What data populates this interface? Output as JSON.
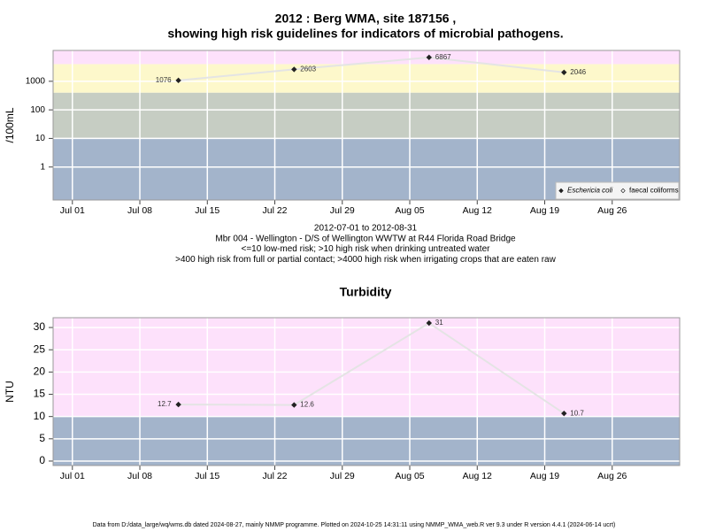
{
  "chart_data": [
    {
      "type": "line",
      "title": [
        "2012 : Berg WMA, site 187156 ,",
        "showing high risk guidelines for indicators of microbial pathogens."
      ],
      "ylabel": "/100mL",
      "log_y": true,
      "x": [
        "2012-07-12",
        "2012-07-24",
        "2012-08-07",
        "2012-08-21"
      ],
      "series": [
        {
          "name": "Eschericia coli",
          "color": "#222222",
          "values": [
            1076,
            2603,
            6867,
            2046
          ]
        },
        {
          "name": "faecal coliforms",
          "color": "#222222",
          "values": [
            null,
            null,
            null,
            null
          ]
        }
      ],
      "line_color": "#e4e4e4",
      "xlim": [
        "2012-06-29",
        "2012-09-02"
      ],
      "xticks": [
        {
          "value": "2012-07-01",
          "label": "Jul 01"
        },
        {
          "value": "2012-07-08",
          "label": "Jul 08"
        },
        {
          "value": "2012-07-15",
          "label": "Jul 15"
        },
        {
          "value": "2012-07-22",
          "label": "Jul 22"
        },
        {
          "value": "2012-07-29",
          "label": "Jul 29"
        },
        {
          "value": "2012-08-05",
          "label": "Aug 05"
        },
        {
          "value": "2012-08-12",
          "label": "Aug 12"
        },
        {
          "value": "2012-08-19",
          "label": "Aug 19"
        },
        {
          "value": "2012-08-26",
          "label": "Aug 26"
        }
      ],
      "ylim": [
        0.07,
        12000
      ],
      "yticks": [
        1,
        10,
        100,
        1000
      ],
      "band_limits": [
        10,
        400,
        4000
      ],
      "band_colors": [
        "#a3b4cb",
        "#c6cdc3",
        "#fdf8cb",
        "#fde1fb"
      ],
      "grid": true,
      "legend": "lower right",
      "notes": [
        "2012-07-01 to 2012-08-31",
        "Mbr 004 - Wellington - D/S of Wellington WWTW at R44 Florida Road Bridge",
        "<=10 low-med risk; >10 high risk when drinking untreated water",
        ">400 high risk from full or partial contact; >4000 high risk when irrigating crops that are eaten raw"
      ]
    },
    {
      "type": "line",
      "title": [
        "Turbidity"
      ],
      "ylabel": "NTU",
      "log_y": false,
      "x": [
        "2012-07-12",
        "2012-07-24",
        "2012-08-07",
        "2012-08-21"
      ],
      "series": [
        {
          "name": "Turbidity",
          "color": "#222222",
          "values": [
            12.7,
            12.6,
            31,
            10.7
          ]
        }
      ],
      "line_color": "#e4e4e4",
      "xlim": [
        "2012-06-29",
        "2012-09-02"
      ],
      "xticks": [
        {
          "value": "2012-07-01",
          "label": "Jul 01"
        },
        {
          "value": "2012-07-08",
          "label": "Jul 08"
        },
        {
          "value": "2012-07-15",
          "label": "Jul 15"
        },
        {
          "value": "2012-07-22",
          "label": "Jul 22"
        },
        {
          "value": "2012-07-29",
          "label": "Jul 29"
        },
        {
          "value": "2012-08-05",
          "label": "Aug 05"
        },
        {
          "value": "2012-08-12",
          "label": "Aug 12"
        },
        {
          "value": "2012-08-19",
          "label": "Aug 19"
        },
        {
          "value": "2012-08-26",
          "label": "Aug 26"
        }
      ],
      "ylim": [
        -1,
        32.2
      ],
      "yticks": [
        0,
        5,
        10,
        15,
        20,
        25,
        30
      ],
      "band_limits": [
        10
      ],
      "band_colors": [
        "#a3b4cb",
        "#fde1fb"
      ],
      "grid": true
    }
  ],
  "footer": "Data from D:/data_large/wq/wms.db dated 2024-08-27, mainly NMMP programme. Plotted on 2024-10-25 14:31:11 using NMMP_WMA_web.R ver 9.3 under R version 4.4.1 (2024-06-14 ucrt)"
}
